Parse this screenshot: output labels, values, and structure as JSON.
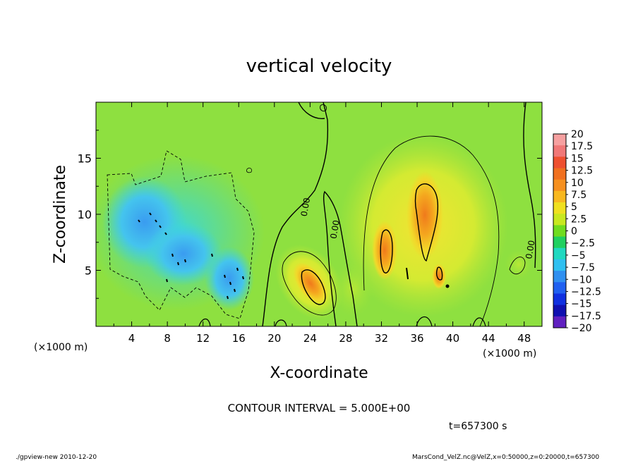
{
  "chart_data": {
    "type": "heatmap",
    "title": "vertical velocity",
    "xlabel": "X-coordinate",
    "ylabel": "Z-coordinate",
    "x_unit": "(×1000 m)",
    "y_unit": "(×1000 m)",
    "xlim": [
      0,
      50
    ],
    "ylim": [
      0,
      20
    ],
    "x_ticks": [
      4,
      8,
      12,
      16,
      20,
      24,
      28,
      32,
      36,
      40,
      44,
      48
    ],
    "y_ticks": [
      5,
      10,
      15
    ],
    "colorbar": {
      "levels": [
        20,
        17.5,
        15,
        12.5,
        10,
        7.5,
        5,
        2.5,
        0,
        -2.5,
        -5,
        -7.5,
        -10,
        -12.5,
        -15,
        -17.5,
        -20
      ],
      "labels": [
        "20",
        "17.5",
        "15",
        "12.5",
        "10",
        "7.5",
        "5",
        "2.5",
        "0",
        "−2.5",
        "−5",
        "−7.5",
        "−10",
        "−12.5",
        "−15",
        "−17.5",
        "−20"
      ],
      "colors": [
        "#f6a0a0",
        "#f07878",
        "#ee5030",
        "#f07020",
        "#f59020",
        "#f8b820",
        "#f0e020",
        "#c8e820",
        "#70dc20",
        "#20d060",
        "#20d8c0",
        "#30c0f0",
        "#3090f0",
        "#2060f0",
        "#1030e0",
        "#1010b0",
        "#6020c0"
      ]
    },
    "contour_labels": [
      {
        "text": "0.00",
        "x": 23.8,
        "z": 10.6
      },
      {
        "text": "0.00",
        "x": 27.1,
        "z": 8.6
      },
      {
        "text": "0.00",
        "x": 49.0,
        "z": 6.8
      }
    ],
    "features": [
      {
        "sign": "negative",
        "name": "downdraft",
        "x_range": [
          1,
          17
        ],
        "z_range": [
          1,
          14
        ],
        "min_value": -10
      },
      {
        "sign": "positive",
        "name": "updraft",
        "center_x": 23.8,
        "center_z": 3.8,
        "max_value": 12
      },
      {
        "sign": "positive",
        "name": "updraft",
        "center_x": 36.7,
        "center_z": 9.8,
        "max_value": 13
      },
      {
        "sign": "positive",
        "name": "updraft",
        "center_x": 32.5,
        "center_z": 7.0,
        "max_value": 11
      }
    ],
    "contour_interval_text": "CONTOUR INTERVAL = 5.000E+00",
    "time_text": "t=657300 s"
  },
  "footer": {
    "left": "./gpview-new   2010-12-20",
    "right": "MarsCond_VelZ.nc@VelZ,x=0:50000,z=0:20000,t=657300"
  }
}
